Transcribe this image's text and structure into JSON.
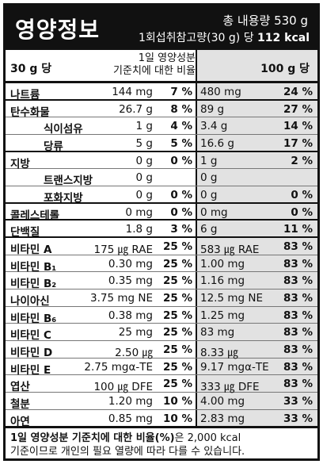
{
  "header": {
    "title": "영양정보",
    "total": "총 내용량 530 g",
    "serving": "1회섭취참고량(30 g) 당",
    "kcal": "112 kcal"
  },
  "columns": {
    "per30": "30 g 당",
    "dv_line1": "1일 영양성분",
    "dv_line2": "기준치에 대한 비율",
    "per100": "100 g 당"
  },
  "rows": [
    {
      "name": "나트륨",
      "a1": "144 mg",
      "p1": "7 %",
      "a2": "480 mg",
      "p2": "24 %"
    },
    {
      "name": "탄수화물",
      "a1": "26.7 g",
      "p1": "8 %",
      "a2": "89 g",
      "p2": "27 %"
    },
    {
      "name": "식이섬유",
      "a1": "1 g",
      "p1": "4 %",
      "a2": "3.4 g",
      "p2": "14 %"
    },
    {
      "name": "당류",
      "a1": "5 g",
      "p1": "5 %",
      "a2": "16.6 g",
      "p2": "17 %"
    },
    {
      "name": "지방",
      "a1": "0 g",
      "p1": "0 %",
      "a2": "1 g",
      "p2": "2 %"
    },
    {
      "name": "트랜스지방",
      "a1": "0 g",
      "p1": "",
      "a2": "0 g",
      "p2": ""
    },
    {
      "name": "포화지방",
      "a1": "0 g",
      "p1": "0 %",
      "a2": "0 g",
      "p2": "0 %"
    },
    {
      "name": "콜레스테롤",
      "a1": "0 mg",
      "p1": "0 %",
      "a2": "0 mg",
      "p2": "0 %"
    },
    {
      "name": "단백질",
      "a1": "1.8 g",
      "p1": "3 %",
      "a2": "6 g",
      "p2": "11 %"
    },
    {
      "name": "비타민 A",
      "a1": "175 ㎍ RAE",
      "p1": "25 %",
      "a2": "583 ㎍ RAE",
      "p2": "83 %"
    },
    {
      "name": "비타민 B₁",
      "a1": "0.30 mg",
      "p1": "25 %",
      "a2": "1.00 mg",
      "p2": "83 %"
    },
    {
      "name": "비타민 B₂",
      "a1": "0.35 mg",
      "p1": "25 %",
      "a2": "1.16 mg",
      "p2": "83 %"
    },
    {
      "name": "나이아신",
      "a1": "3.75 mg NE",
      "p1": "25 %",
      "a2": "12.5 mg NE",
      "p2": "83 %"
    },
    {
      "name": "비타민 B₆",
      "a1": "0.38 mg",
      "p1": "25 %",
      "a2": "1.25 mg",
      "p2": "83 %"
    },
    {
      "name": "비타민 C",
      "a1": "25 mg",
      "p1": "25 %",
      "a2": "83 mg",
      "p2": "83 %"
    },
    {
      "name": "비타민 D",
      "a1": "2.50 ㎍",
      "p1": "25 %",
      "a2": "8.33 ㎍",
      "p2": "83 %"
    },
    {
      "name": "비타민 E",
      "a1": "2.75 mgα-TE",
      "p1": "25 %",
      "a2": "9.17 mgα-TE",
      "p2": "83 %"
    },
    {
      "name": "엽산",
      "a1": "100 ㎍ DFE",
      "p1": "25 %",
      "a2": "333 ㎍ DFE",
      "p2": "83 %"
    },
    {
      "name": "철분",
      "a1": "1.20 mg",
      "p1": "10 %",
      "a2": "4.00 mg",
      "p2": "33 %"
    },
    {
      "name": "아연",
      "a1": "0.85 mg",
      "p1": "10 %",
      "a2": "2.83 mg",
      "p2": "33 %"
    }
  ],
  "footer": {
    "bold": "1일 영양성분 기준치에 대한 비율(%)",
    "rest": "은 2,000 kcal",
    "line2": "기준이므로 개인의 필요 열량에 따라 다를 수 있습니다."
  }
}
